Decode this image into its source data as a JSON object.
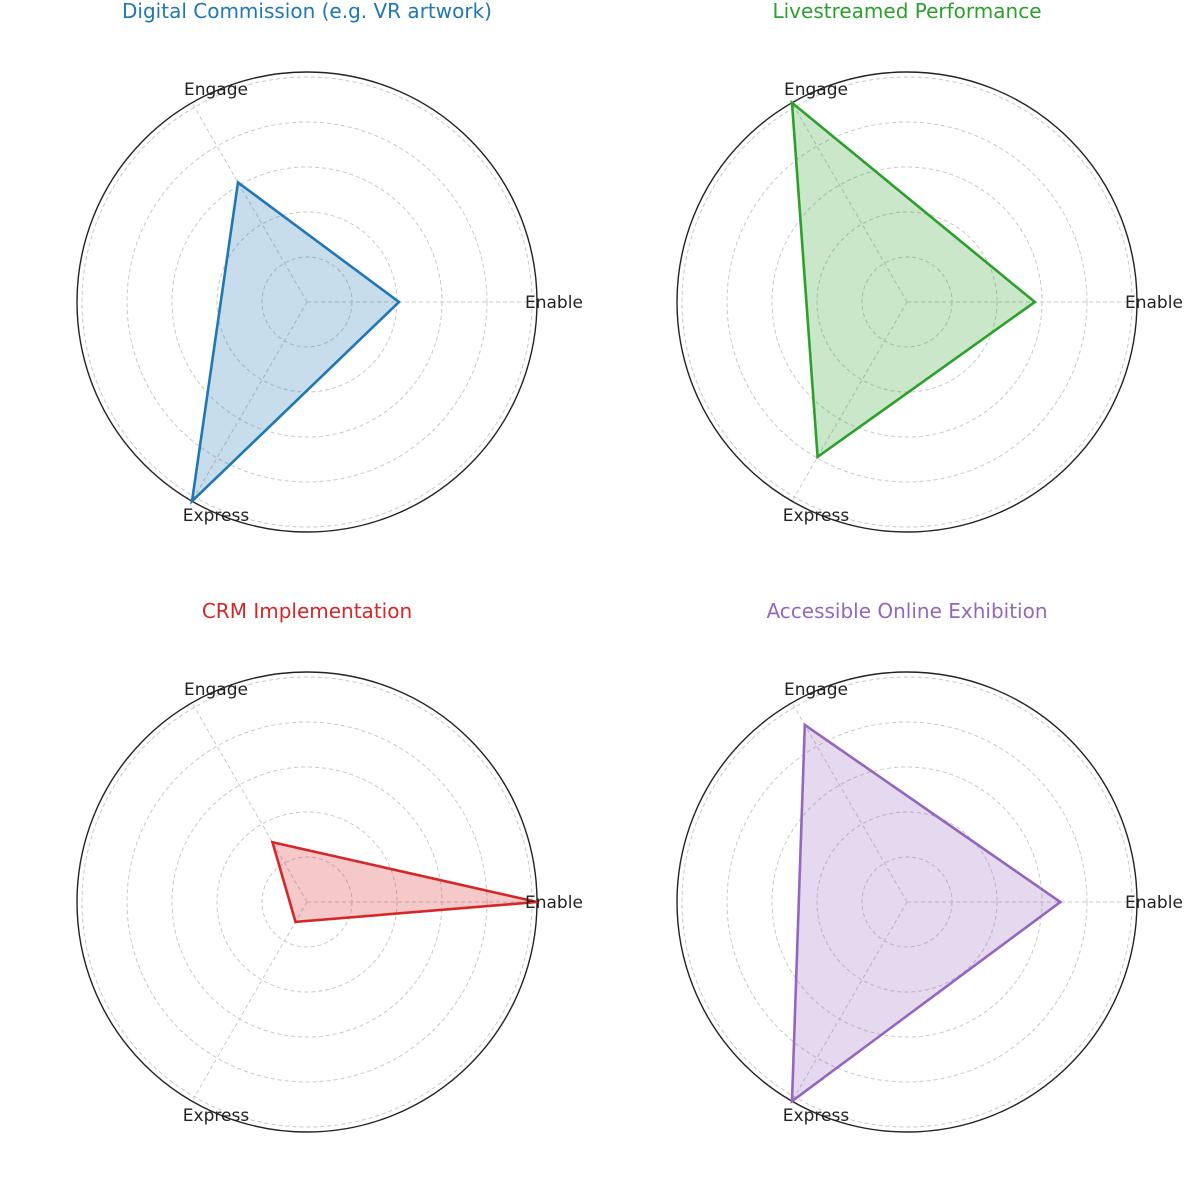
{
  "chart_data": [
    {
      "type": "radar",
      "title": "Digital Commission (e.g. VR artwork)",
      "color": "#1f77b4",
      "axes": [
        "Enable",
        "Engage",
        "Express"
      ],
      "values": [
        2,
        3,
        5
      ],
      "rlim": [
        0,
        5
      ],
      "grid": true
    },
    {
      "type": "radar",
      "title": "Livestreamed Performance",
      "color": "#2ca02c",
      "axes": [
        "Enable",
        "Engage",
        "Express"
      ],
      "values": [
        2.5,
        4.5,
        3.5
      ],
      "rlim": [
        0,
        4.5
      ],
      "grid": true
    },
    {
      "type": "radar",
      "title": "CRM Implementation",
      "color": "#d62728",
      "axes": [
        "Enable",
        "Engage",
        "Express"
      ],
      "values": [
        5,
        1.5,
        0.5
      ],
      "rlim": [
        0,
        5
      ],
      "grid": true
    },
    {
      "type": "radar",
      "title": "Accessible Online Exhibition",
      "color": "#9467bd",
      "axes": [
        "Enable",
        "Engage",
        "Express"
      ],
      "values": [
        3,
        4,
        4.5
      ],
      "rlim": [
        0,
        4.5
      ],
      "grid": true
    }
  ]
}
